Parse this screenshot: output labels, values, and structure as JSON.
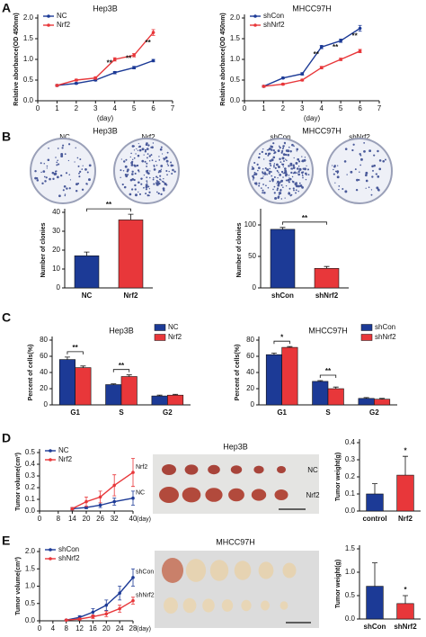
{
  "panel_labels": [
    "A",
    "B",
    "C",
    "D",
    "E"
  ],
  "images": [
    {
      "title": "Hep3B",
      "labels": [
        "NC",
        "Nrf2"
      ]
    },
    {
      "title": "MHCC97H",
      "labels": [
        "shCon",
        "shNrf2"
      ]
    },
    {
      "title": "Hep3B",
      "labels": [
        "NC",
        "Nrf2"
      ]
    },
    {
      "title": "MHCC97H"
    }
  ],
  "chart_data": [
    {
      "type": "line",
      "title": "Hep3B",
      "xlabel": "(day)",
      "ylabel": "Relative aborbance(OD 450nm)",
      "x": [
        1,
        2,
        3,
        4,
        5,
        6
      ],
      "xlim": [
        0,
        7
      ],
      "xticks": [
        0,
        1,
        2,
        3,
        4,
        5,
        6,
        7
      ],
      "ylim": [
        0,
        2
      ],
      "yticks": [
        {
          "value": 0,
          "label": "0.0"
        },
        {
          "value": 0.5,
          "label": "0.5"
        },
        {
          "value": 1,
          "label": "1.0"
        },
        {
          "value": 1.5,
          "label": "1.5"
        },
        {
          "value": 2,
          "label": "2.0"
        }
      ],
      "legend": "upper left",
      "series": [
        {
          "name": "NC",
          "color": "#1c3a96",
          "values": [
            0.37,
            0.42,
            0.5,
            0.68,
            0.8,
            0.97
          ],
          "errors": [
            0.02,
            0.02,
            0.02,
            0.03,
            0.03,
            0.03
          ]
        },
        {
          "name": "Nrf2",
          "color": "#e8373a",
          "values": [
            0.37,
            0.5,
            0.55,
            1.0,
            1.1,
            1.65
          ],
          "errors": [
            0.02,
            0.02,
            0.03,
            0.04,
            0.04,
            0.07
          ]
        }
      ],
      "annotations": [
        {
          "x": 4,
          "text": "**"
        },
        {
          "x": 5,
          "text": "**"
        },
        {
          "x": 6,
          "text": "**"
        }
      ]
    },
    {
      "type": "line",
      "title": "MHCC97H",
      "xlabel": "(day)",
      "ylabel": "Relative aborbance(OD 450nm)",
      "x": [
        1,
        2,
        3,
        4,
        5,
        6
      ],
      "xlim": [
        0,
        7
      ],
      "xticks": [
        0,
        1,
        2,
        3,
        4,
        5,
        6,
        7
      ],
      "ylim": [
        0,
        2
      ],
      "yticks": [
        {
          "value": 0,
          "label": "0.0"
        },
        {
          "value": 0.5,
          "label": "0.5"
        },
        {
          "value": 1,
          "label": "1.0"
        },
        {
          "value": 1.5,
          "label": "1.5"
        },
        {
          "value": 2,
          "label": "2.0"
        }
      ],
      "legend": "upper left",
      "series": [
        {
          "name": "shCon",
          "color": "#1c3a96",
          "values": [
            0.35,
            0.55,
            0.65,
            1.3,
            1.45,
            1.75
          ],
          "errors": [
            0.02,
            0.02,
            0.03,
            0.04,
            0.04,
            0.07
          ]
        },
        {
          "name": "shNrf2",
          "color": "#e8373a",
          "values": [
            0.35,
            0.4,
            0.5,
            0.8,
            1.0,
            1.2
          ],
          "errors": [
            0.02,
            0.02,
            0.02,
            0.03,
            0.03,
            0.04
          ]
        }
      ],
      "annotations": [
        {
          "x": 4,
          "text": "**"
        },
        {
          "x": 5,
          "text": "**"
        },
        {
          "x": 6,
          "text": "**"
        }
      ]
    },
    {
      "type": "bar",
      "ylabel": "Number of clonies",
      "categories": [
        "NC",
        "Nrf2"
      ],
      "values": [
        17,
        36
      ],
      "errors": [
        2,
        3
      ],
      "colors": [
        "#1c3a96",
        "#e8373a"
      ],
      "ylim": [
        0,
        40
      ],
      "yticks": [
        0,
        10,
        20,
        30,
        40
      ],
      "annotations": [
        {
          "text": "**"
        }
      ]
    },
    {
      "type": "bar",
      "ylabel": "Number of clonies",
      "categories": [
        "shCon",
        "shNrf2"
      ],
      "values": [
        93,
        31
      ],
      "errors": [
        3,
        3
      ],
      "colors": [
        "#1c3a96",
        "#e8373a"
      ],
      "ylim": [
        0,
        120
      ],
      "yticks": [
        0,
        50,
        100
      ],
      "annotations": [
        {
          "text": "**"
        }
      ]
    },
    {
      "type": "bar",
      "title": "Hep3B",
      "ylabel": "Percent of cells(%)",
      "categories": [
        "G1",
        "S",
        "G2"
      ],
      "legend": "upper right",
      "series": [
        {
          "name": "NC",
          "color": "#1c3a96",
          "values": [
            56,
            25,
            11
          ],
          "errors": [
            3,
            1,
            1
          ]
        },
        {
          "name": "Nrf2",
          "color": "#e8373a",
          "values": [
            46,
            35,
            12
          ],
          "errors": [
            2,
            2,
            1
          ]
        }
      ],
      "ylim": [
        0,
        80
      ],
      "yticks": [
        0,
        20,
        40,
        60,
        80
      ],
      "annotations": [
        {
          "category": "G1",
          "text": "**"
        },
        {
          "category": "S",
          "text": "**"
        }
      ]
    },
    {
      "type": "bar",
      "title": "MHCC97H",
      "ylabel": "Percent of cells(%)",
      "categories": [
        "G1",
        "S",
        "G2"
      ],
      "legend": "upper right",
      "series": [
        {
          "name": "shCon",
          "color": "#1c3a96",
          "values": [
            62,
            29,
            8
          ],
          "errors": [
            2,
            1,
            1
          ]
        },
        {
          "name": "shNrf2",
          "color": "#e8373a",
          "values": [
            71,
            20,
            7
          ],
          "errors": [
            1,
            2,
            1
          ]
        }
      ],
      "ylim": [
        0,
        80
      ],
      "yticks": [
        0,
        20,
        40,
        60,
        80
      ],
      "annotations": [
        {
          "category": "G1",
          "text": "*"
        },
        {
          "category": "S",
          "text": "**"
        }
      ]
    },
    {
      "type": "line",
      "xlabel": "(day)",
      "ylabel": "Tumor volume(cm³)",
      "x": [
        14,
        20,
        26,
        32,
        40
      ],
      "xlim": [
        0,
        40
      ],
      "xticks": [
        0,
        8,
        14,
        20,
        26,
        32,
        40
      ],
      "ylim": [
        0,
        0.5
      ],
      "yticks": [
        {
          "value": 0,
          "label": "0.0"
        },
        {
          "value": 0.1,
          "label": "0.1"
        },
        {
          "value": 0.2,
          "label": "0.2"
        },
        {
          "value": 0.3,
          "label": "0.3"
        },
        {
          "value": 0.4,
          "label": "0.4"
        },
        {
          "value": 0.5,
          "label": "0.5"
        }
      ],
      "legend": "upper left",
      "end_labels": true,
      "series": [
        {
          "name": "NC",
          "color": "#1c3a96",
          "values": [
            0.02,
            0.03,
            0.05,
            0.08,
            0.11
          ],
          "errors": [
            0.01,
            0.01,
            0.02,
            0.03,
            0.06
          ]
        },
        {
          "name": "Nrf2",
          "color": "#e8373a",
          "values": [
            0.02,
            0.08,
            0.12,
            0.22,
            0.33
          ],
          "errors": [
            0.01,
            0.04,
            0.05,
            0.09,
            0.12
          ]
        }
      ]
    },
    {
      "type": "bar",
      "ylabel": "Tumor weight(g)",
      "categories": [
        "control",
        "Nrf2"
      ],
      "values": [
        0.1,
        0.21
      ],
      "errors": [
        0.06,
        0.11
      ],
      "colors": [
        "#1c3a96",
        "#e8373a"
      ],
      "ylim": [
        0,
        0.4
      ],
      "yticks": [
        {
          "value": 0,
          "label": "0.0"
        },
        {
          "value": 0.1,
          "label": "0.1"
        },
        {
          "value": 0.2,
          "label": "0.2"
        },
        {
          "value": 0.3,
          "label": "0.3"
        },
        {
          "value": 0.4,
          "label": "0.4"
        }
      ],
      "annotations": [
        {
          "category": "Nrf2",
          "text": "*"
        }
      ]
    },
    {
      "type": "line",
      "xlabel": "(day)",
      "ylabel": "Tumor volume(cm³)",
      "x": [
        8,
        12,
        16,
        20,
        24,
        28
      ],
      "xlim": [
        0,
        28
      ],
      "xticks": [
        0,
        4,
        8,
        12,
        16,
        20,
        24,
        28
      ],
      "ylim": [
        0,
        2
      ],
      "yticks": [
        {
          "value": 0,
          "label": "0.0"
        },
        {
          "value": 0.5,
          "label": "0.5"
        },
        {
          "value": 1,
          "label": "1.0"
        },
        {
          "value": 1.5,
          "label": "1.5"
        },
        {
          "value": 2,
          "label": "2.0"
        }
      ],
      "legend": "upper left",
      "end_labels": true,
      "series": [
        {
          "name": "shCon",
          "color": "#1c3a96",
          "values": [
            0.02,
            0.1,
            0.25,
            0.45,
            0.8,
            1.25
          ],
          "errors": [
            0.01,
            0.05,
            0.1,
            0.15,
            0.2,
            0.25
          ]
        },
        {
          "name": "shNrf2",
          "color": "#e8373a",
          "values": [
            0.02,
            0.05,
            0.12,
            0.2,
            0.35,
            0.58
          ],
          "errors": [
            0.01,
            0.02,
            0.05,
            0.08,
            0.1,
            0.1
          ]
        }
      ]
    },
    {
      "type": "bar",
      "ylabel": "Tumor weight(g)",
      "categories": [
        "shCon",
        "shNrf2"
      ],
      "values": [
        0.7,
        0.33
      ],
      "errors": [
        0.5,
        0.17
      ],
      "colors": [
        "#1c3a96",
        "#e8373a"
      ],
      "ylim": [
        0,
        1.5
      ],
      "yticks": [
        {
          "value": 0,
          "label": "0.0"
        },
        {
          "value": 0.5,
          "label": "0.5"
        },
        {
          "value": 1,
          "label": "1.0"
        },
        {
          "value": 1.5,
          "label": "1.5"
        }
      ],
      "annotations": [
        {
          "category": "shNrf2",
          "text": "*"
        }
      ]
    }
  ]
}
